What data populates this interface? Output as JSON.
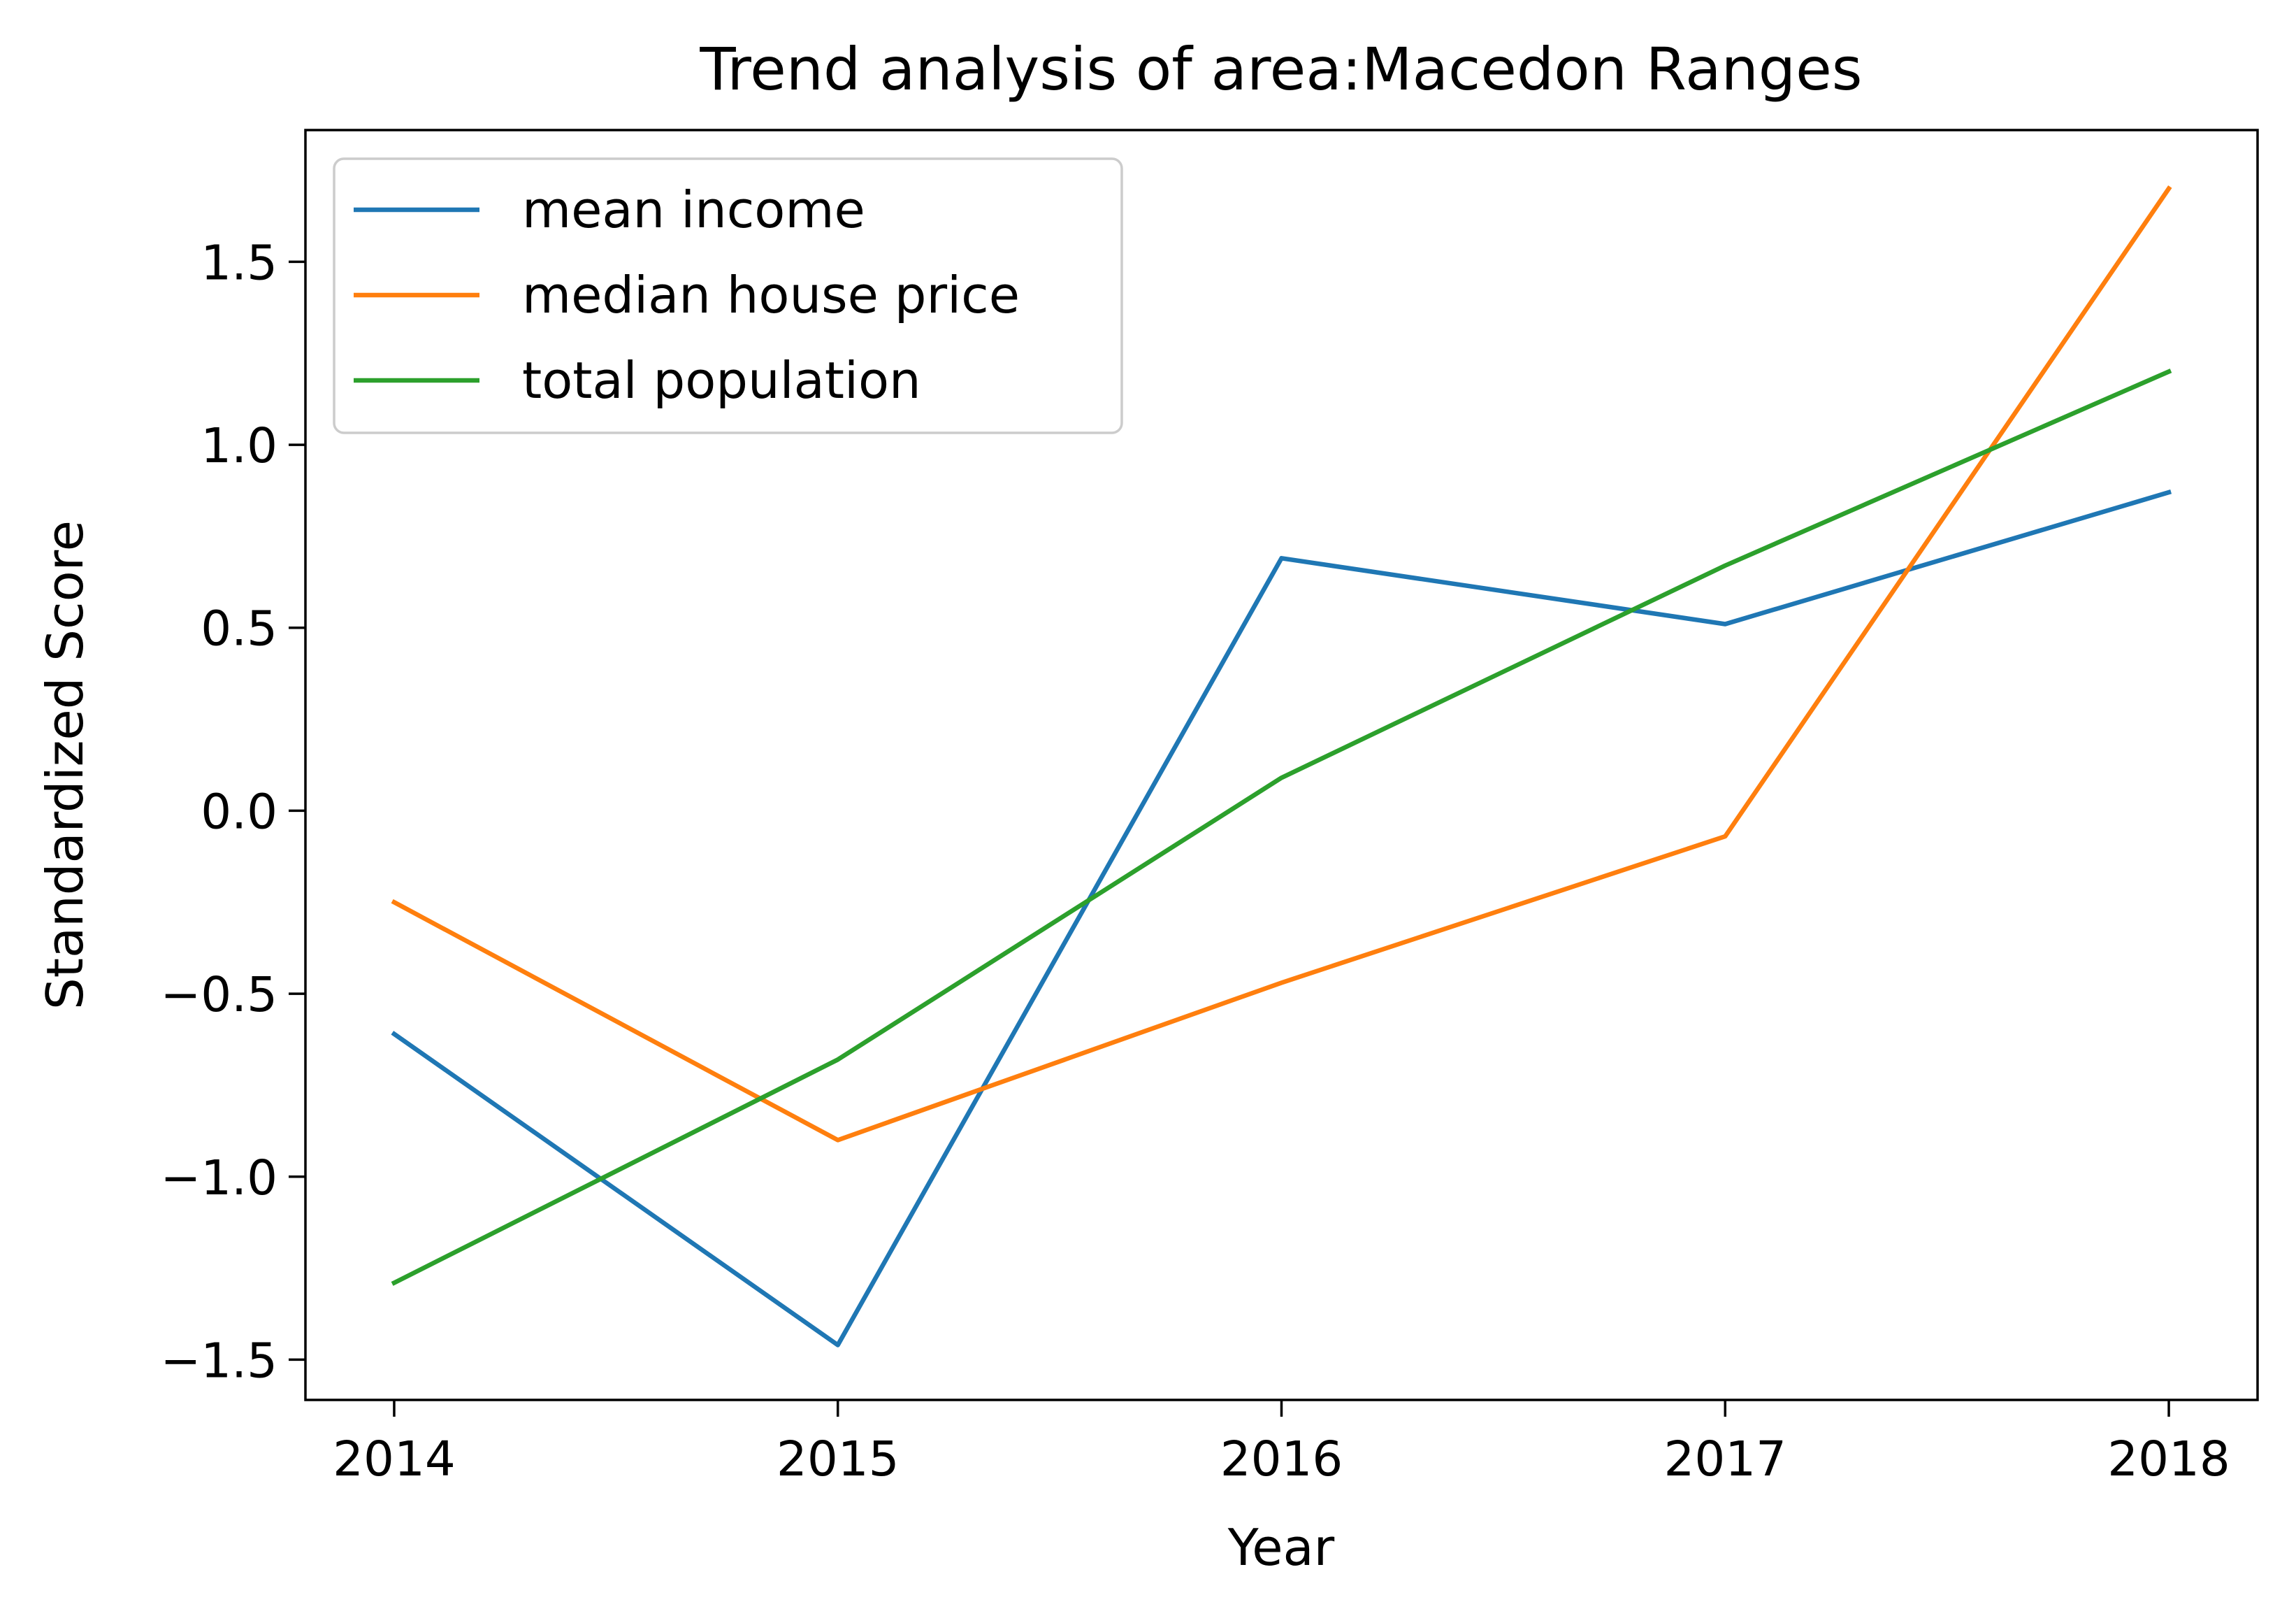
{
  "chart_data": {
    "type": "line",
    "title": "Trend analysis of area:Macedon Ranges",
    "xlabel": "Year",
    "ylabel": "Standardized Score",
    "x": [
      2014,
      2015,
      2016,
      2017,
      2018
    ],
    "x_tick_labels": [
      "2014",
      "2015",
      "2016",
      "2017",
      "2018"
    ],
    "y_ticks": [
      -1.5,
      -1.0,
      -0.5,
      0.0,
      0.5,
      1.0,
      1.5
    ],
    "y_tick_labels": [
      "−1.5",
      "−1.0",
      "−0.5",
      "0.0",
      "0.5",
      "1.0",
      "1.5"
    ],
    "xlim": [
      2013.8,
      2018.2
    ],
    "ylim": [
      -1.61,
      1.86
    ],
    "grid": false,
    "legend_position": "upper-left",
    "series": [
      {
        "name": "mean income",
        "color": "#1f77b4",
        "values": [
          -0.61,
          -1.46,
          0.69,
          0.51,
          0.87
        ]
      },
      {
        "name": "median house price",
        "color": "#ff7f0e",
        "values": [
          -0.25,
          -0.9,
          -0.47,
          -0.07,
          1.7
        ]
      },
      {
        "name": "total population",
        "color": "#2ca02c",
        "values": [
          -1.29,
          -0.68,
          0.09,
          0.67,
          1.2
        ]
      }
    ]
  }
}
